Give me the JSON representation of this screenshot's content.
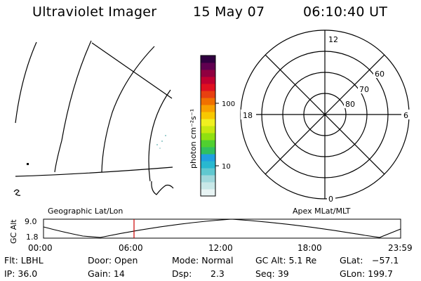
{
  "header": {
    "title": "Ultraviolet Imager",
    "date": "15 May 07",
    "time": "06:10:40 UT"
  },
  "colorbar": {
    "label": "photon cm⁻²s⁻¹",
    "ticks": [
      "100",
      "10"
    ],
    "colors": [
      "#e8f4f4",
      "#c8e8e8",
      "#a0d8dc",
      "#60c8d0",
      "#28b8d0",
      "#20a0e0",
      "#30c060",
      "#50d030",
      "#90e010",
      "#c8e810",
      "#f0f020",
      "#f8c800",
      "#f8a000",
      "#f07000",
      "#e84010",
      "#e01020",
      "#c00030",
      "#900040",
      "#600050",
      "#300040"
    ]
  },
  "polar": {
    "mlt_labels": [
      "12",
      "18",
      "6",
      "0"
    ],
    "lat_labels": [
      "60",
      "70",
      "80"
    ]
  },
  "footprint": {
    "left_label": "Geographic Lat/Lon",
    "right_label": "Apex MLat/MLT"
  },
  "timeline": {
    "ylabel": "GC Alt",
    "ymax": "9.0",
    "ymin": "1.8",
    "x_ticks": [
      "00:00",
      "06:00",
      "12:00",
      "18:00",
      "23:59"
    ],
    "marker_color": "#cc0000"
  },
  "info": {
    "flt": "Flt: LBHL",
    "ip": "IP: 36.0",
    "door": "Door: Open",
    "gain": "Gain: 14",
    "mode": "Mode: Normal",
    "dsp_label": "Dsp:",
    "dsp_value": "2.3",
    "gcalt": "GC Alt: 5.1 Re",
    "seq": "Seq: 39",
    "glat_label": "GLat:",
    "glat_value": "−57.1",
    "glon": "GLon: 199.7"
  }
}
